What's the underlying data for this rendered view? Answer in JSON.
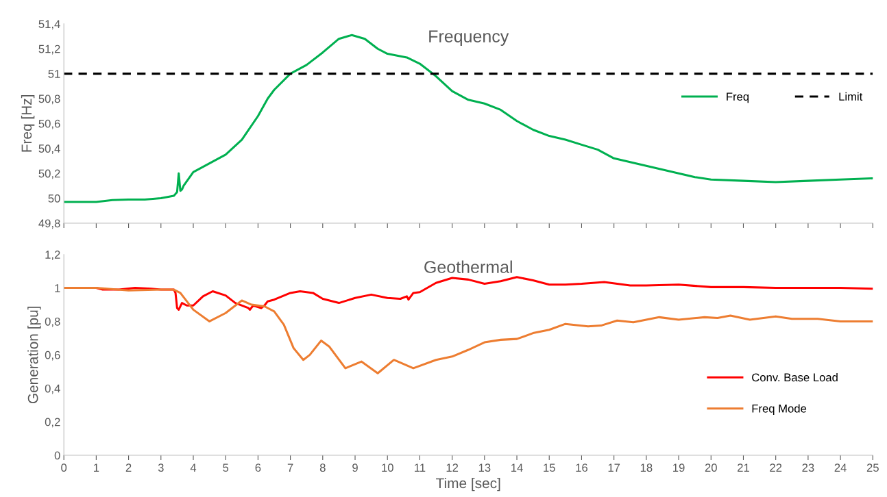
{
  "chart_data": [
    {
      "type": "line",
      "title": "Frequency",
      "ylabel": "Freq [Hz]",
      "xlim": [
        0,
        25
      ],
      "xticks": [
        {
          "value": 0,
          "label": null
        },
        {
          "value": 1,
          "label": null
        },
        {
          "value": 2,
          "label": null
        },
        {
          "value": 3,
          "label": null
        },
        {
          "value": 4,
          "label": null
        },
        {
          "value": 5,
          "label": null
        },
        {
          "value": 6,
          "label": null
        },
        {
          "value": 7,
          "label": null
        },
        {
          "value": 8,
          "label": null
        },
        {
          "value": 9,
          "label": null
        },
        {
          "value": 10,
          "label": null
        },
        {
          "value": 11,
          "label": null
        },
        {
          "value": 12,
          "label": null
        },
        {
          "value": 13,
          "label": null
        },
        {
          "value": 14,
          "label": null
        },
        {
          "value": 15,
          "label": null
        },
        {
          "value": 16,
          "label": null
        },
        {
          "value": 17,
          "label": null
        },
        {
          "value": 18,
          "label": null
        },
        {
          "value": 19,
          "label": null
        },
        {
          "value": 20,
          "label": null
        },
        {
          "value": 21,
          "label": null
        },
        {
          "value": 22,
          "label": null
        },
        {
          "value": 23,
          "label": null
        },
        {
          "value": 24,
          "label": null
        },
        {
          "value": 25,
          "label": null
        }
      ],
      "ylim": [
        49.8,
        51.4
      ],
      "yticks": [
        {
          "value": 49.8,
          "label": "49,8"
        },
        {
          "value": 50,
          "label": "50"
        },
        {
          "value": 50.2,
          "label": "50,2"
        },
        {
          "value": 50.4,
          "label": "50,4"
        },
        {
          "value": 50.6,
          "label": "50,6"
        },
        {
          "value": 50.8,
          "label": "50,8"
        },
        {
          "value": 51,
          "label": "51"
        },
        {
          "value": 51.2,
          "label": "51,2"
        },
        {
          "value": 51.4,
          "label": "51,4"
        }
      ],
      "tick_labels": "y",
      "grid": false,
      "legend": "right",
      "marker": "none",
      "series": [
        {
          "name": "Freq",
          "color": "#00b050",
          "line_style": "solid",
          "x": [
            0,
            1,
            1.5,
            2,
            2.5,
            3,
            3.4,
            3.5,
            3.55,
            3.6,
            3.65,
            3.7,
            4,
            4.5,
            5,
            5.5,
            6,
            6.3,
            6.5,
            7,
            7.5,
            8,
            8.5,
            8.9,
            9.3,
            9.7,
            10,
            10.6,
            11,
            11.5,
            12,
            12.5,
            13,
            13.5,
            14,
            14.5,
            15,
            15.5,
            16,
            16.5,
            17,
            17.5,
            18,
            18.5,
            19,
            19.5,
            20,
            21,
            22,
            23,
            24,
            25
          ],
          "values": [
            49.97,
            49.97,
            49.985,
            49.99,
            49.99,
            50.0,
            50.02,
            50.05,
            50.2,
            50.06,
            50.07,
            50.1,
            50.21,
            50.28,
            50.35,
            50.47,
            50.66,
            50.8,
            50.87,
            51.0,
            51.07,
            51.17,
            51.28,
            51.31,
            51.28,
            51.2,
            51.16,
            51.13,
            51.08,
            50.98,
            50.86,
            50.79,
            50.76,
            50.71,
            50.62,
            50.55,
            50.5,
            50.47,
            50.43,
            50.39,
            50.32,
            50.29,
            50.26,
            50.23,
            50.2,
            50.17,
            50.15,
            50.14,
            50.13,
            50.14,
            50.15,
            50.16
          ]
        },
        {
          "name": "Limit",
          "color": "#000000",
          "line_style": "dashed",
          "x": [
            0,
            25
          ],
          "values": [
            51,
            51
          ]
        }
      ]
    },
    {
      "type": "line",
      "title": "Geothermal",
      "xlabel": "Time [sec]",
      "ylabel": "Generation [pu]",
      "xlim": [
        0,
        25
      ],
      "xticks": [
        0,
        1,
        2,
        3,
        4,
        5,
        6,
        7,
        8,
        9,
        10,
        11,
        12,
        13,
        14,
        15,
        16,
        17,
        18,
        19,
        20,
        21,
        22,
        23,
        24,
        25
      ],
      "ylim": [
        0,
        1.2
      ],
      "yticks": [
        0,
        {
          "value": 0.2,
          "label": "0,2"
        },
        {
          "value": 0.4,
          "label": "0,4"
        },
        {
          "value": 0.6,
          "label": "0,6"
        },
        {
          "value": 0.8,
          "label": "0,8"
        },
        1,
        {
          "value": 1.2,
          "label": "1,2"
        }
      ],
      "grid": false,
      "legend": "lower right",
      "marker": "none",
      "series": [
        {
          "name": "Conv. Base Load",
          "color": "#ff0000",
          "line_style": "solid",
          "x": [
            0,
            1,
            1.2,
            1.7,
            2.2,
            2.7,
            3,
            3.4,
            3.45,
            3.5,
            3.55,
            3.65,
            3.8,
            4,
            4.3,
            4.6,
            5,
            5.3,
            5.7,
            5.75,
            5.85,
            6.1,
            6.2,
            6.3,
            6.5,
            7,
            7.3,
            7.7,
            8,
            8.5,
            9,
            9.5,
            10,
            10.4,
            10.6,
            10.65,
            10.8,
            11,
            11.5,
            12,
            12.5,
            13,
            13.5,
            14,
            14.5,
            15,
            15.5,
            16,
            16.7,
            17.5,
            18,
            19,
            20,
            21,
            22,
            23,
            24,
            25
          ],
          "values": [
            1.0,
            1.0,
            0.99,
            0.99,
            1.0,
            0.995,
            0.99,
            0.99,
            0.97,
            0.88,
            0.87,
            0.91,
            0.895,
            0.895,
            0.95,
            0.98,
            0.955,
            0.91,
            0.88,
            0.87,
            0.895,
            0.88,
            0.895,
            0.92,
            0.93,
            0.97,
            0.98,
            0.97,
            0.935,
            0.91,
            0.94,
            0.96,
            0.94,
            0.935,
            0.95,
            0.93,
            0.97,
            0.975,
            1.03,
            1.06,
            1.05,
            1.025,
            1.04,
            1.065,
            1.045,
            1.02,
            1.02,
            1.025,
            1.035,
            1.015,
            1.015,
            1.02,
            1.005,
            1.005,
            1.0,
            1.0,
            1.0,
            0.995
          ]
        },
        {
          "name": "Freq Mode",
          "color": "#ed7d31",
          "line_style": "solid",
          "x": [
            0,
            1,
            2,
            3,
            3.4,
            3.6,
            4,
            4.5,
            5,
            5.5,
            5.8,
            6.2,
            6.5,
            6.8,
            7.1,
            7.4,
            7.6,
            7.95,
            8.2,
            8.7,
            9.2,
            9.7,
            10.2,
            10.8,
            11.5,
            12,
            12.5,
            13,
            13.5,
            14,
            14.5,
            15,
            15.5,
            16.2,
            16.6,
            17.1,
            17.6,
            18.4,
            19,
            19.8,
            20.2,
            20.6,
            21.2,
            22,
            22.5,
            23.3,
            24,
            25
          ],
          "values": [
            1.0,
            1.0,
            0.985,
            0.99,
            0.99,
            0.97,
            0.87,
            0.8,
            0.85,
            0.925,
            0.9,
            0.89,
            0.86,
            0.78,
            0.64,
            0.57,
            0.6,
            0.685,
            0.65,
            0.52,
            0.56,
            0.49,
            0.57,
            0.52,
            0.57,
            0.59,
            0.63,
            0.675,
            0.69,
            0.695,
            0.73,
            0.75,
            0.785,
            0.77,
            0.775,
            0.805,
            0.795,
            0.825,
            0.81,
            0.825,
            0.82,
            0.835,
            0.81,
            0.83,
            0.815,
            0.815,
            0.8,
            0.8
          ]
        }
      ]
    }
  ]
}
